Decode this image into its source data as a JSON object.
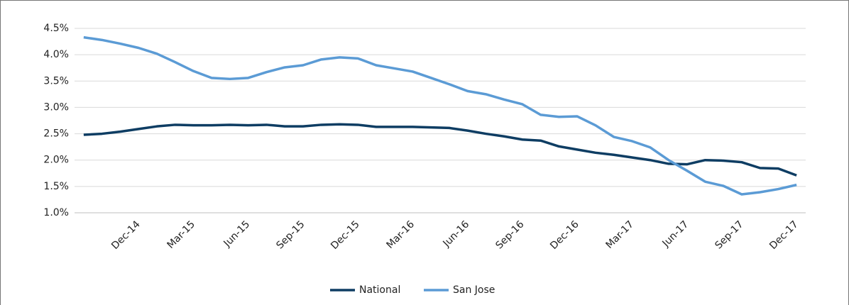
{
  "chart_data": {
    "type": "line",
    "categories": [
      null,
      null,
      null,
      "Dec-14",
      null,
      null,
      "Mar-15",
      null,
      null,
      "Jun-15",
      null,
      null,
      "Sep-15",
      null,
      null,
      "Dec-15",
      null,
      null,
      "Mar-16",
      null,
      null,
      "Jun-16",
      null,
      null,
      "Sep-16",
      null,
      null,
      "Dec-16",
      null,
      null,
      "Mar-17",
      null,
      null,
      "Jun-17",
      null,
      null,
      "Sep-17",
      null,
      null,
      "Dec-17"
    ],
    "series": [
      {
        "name": "National",
        "color": "#0e3d63",
        "values": [
          2.48,
          2.5,
          2.54,
          2.59,
          2.64,
          2.67,
          2.66,
          2.66,
          2.67,
          2.66,
          2.67,
          2.64,
          2.64,
          2.67,
          2.68,
          2.67,
          2.63,
          2.63,
          2.63,
          2.62,
          2.61,
          2.56,
          2.5,
          2.45,
          2.39,
          2.37,
          2.26,
          2.2,
          2.14,
          2.1,
          2.05,
          2.0,
          1.93,
          1.92,
          2.0,
          1.99,
          1.96,
          1.85,
          1.84,
          1.71
        ]
      },
      {
        "name": "San Jose",
        "color": "#5b9bd5",
        "values": [
          4.33,
          4.28,
          4.21,
          4.13,
          4.02,
          3.86,
          3.69,
          3.56,
          3.54,
          3.56,
          3.67,
          3.76,
          3.8,
          3.91,
          3.95,
          3.93,
          3.8,
          3.74,
          3.68,
          3.56,
          3.44,
          3.31,
          3.25,
          3.15,
          3.06,
          2.86,
          2.82,
          2.83,
          2.66,
          2.44,
          2.36,
          2.24,
          2.0,
          1.8,
          1.59,
          1.51,
          1.35,
          1.39,
          1.45,
          1.53
        ]
      }
    ],
    "ylim": [
      1.0,
      4.5
    ],
    "yticks": [
      {
        "value": 1.0,
        "label": "1.0%"
      },
      {
        "value": 1.5,
        "label": "1.5%"
      },
      {
        "value": 2.0,
        "label": "2.0%"
      },
      {
        "value": 2.5,
        "label": "2.5%"
      },
      {
        "value": 3.0,
        "label": "3.0%"
      },
      {
        "value": 3.5,
        "label": "3.5%"
      },
      {
        "value": 4.0,
        "label": "4.0%"
      },
      {
        "value": 4.5,
        "label": "4.5%"
      }
    ],
    "grid": true,
    "legend": "bottom"
  }
}
